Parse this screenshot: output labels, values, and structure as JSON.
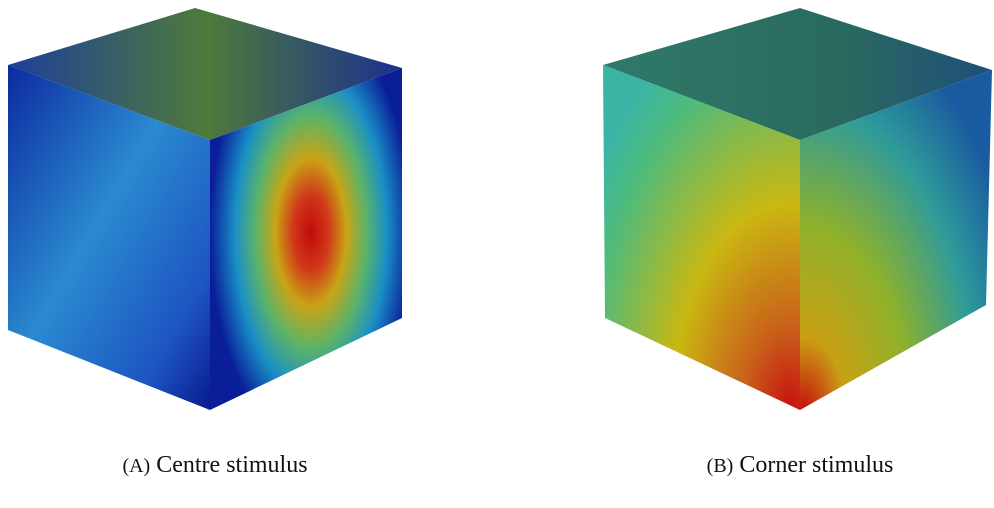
{
  "figures": [
    {
      "label": "(A)",
      "caption": "Centre stimulus"
    },
    {
      "label": "(B)",
      "caption": "Corner stimulus"
    }
  ]
}
